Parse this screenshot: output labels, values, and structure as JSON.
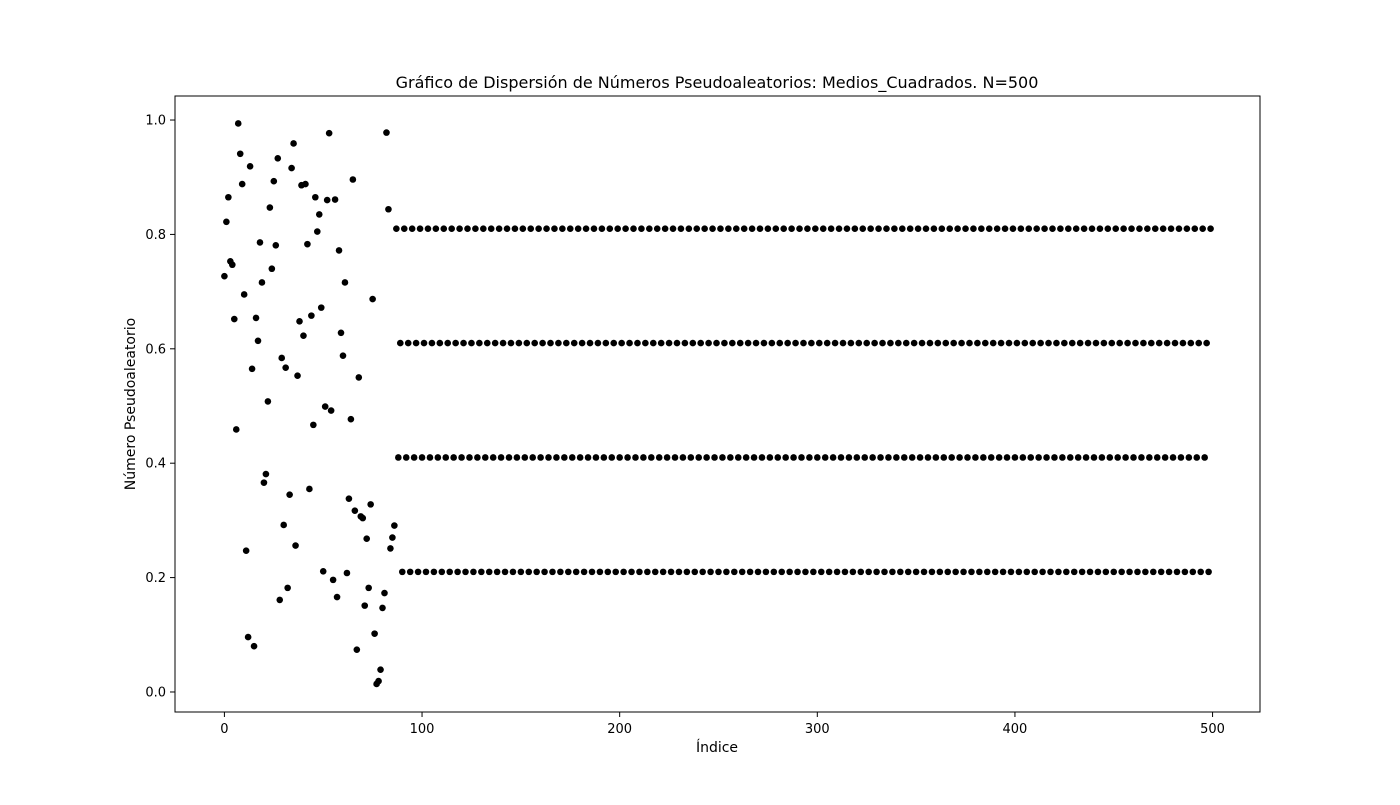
{
  "chart_data": {
    "type": "scatter",
    "title": "Gráfico de Dispersión de Números Pseudoaleatorios: Medios_Cuadrados. N=500",
    "xlabel": "Índice",
    "ylabel": "Número Pseudoaleatorio",
    "xlim": [
      -25,
      524
    ],
    "ylim": [
      -0.035,
      1.042
    ],
    "xticks": [
      0,
      100,
      200,
      300,
      400,
      500
    ],
    "yticks": [
      0.0,
      0.2,
      0.4,
      0.6,
      0.8,
      1.0
    ],
    "xtick_labels": [
      "0",
      "100",
      "200",
      "300",
      "400",
      "500"
    ],
    "ytick_labels": [
      "0.0",
      "0.2",
      "0.4",
      "0.6",
      "0.8",
      "1.0"
    ],
    "grid": false,
    "legend": "none",
    "marker_color": "#000000",
    "irregular_points": [
      [
        0,
        0.727
      ],
      [
        1,
        0.822
      ],
      [
        2,
        0.865
      ],
      [
        3,
        0.753
      ],
      [
        4,
        0.747
      ],
      [
        5,
        0.652
      ],
      [
        6,
        0.459
      ],
      [
        7,
        0.994
      ],
      [
        8,
        0.941
      ],
      [
        9,
        0.888
      ],
      [
        10,
        0.695
      ],
      [
        11,
        0.247
      ],
      [
        12,
        0.096
      ],
      [
        13,
        0.919
      ],
      [
        14,
        0.565
      ],
      [
        15,
        0.08
      ],
      [
        16,
        0.654
      ],
      [
        17,
        0.614
      ],
      [
        18,
        0.786
      ],
      [
        19,
        0.716
      ],
      [
        20,
        0.366
      ],
      [
        21,
        0.381
      ],
      [
        22,
        0.508
      ],
      [
        23,
        0.847
      ],
      [
        24,
        0.74
      ],
      [
        25,
        0.893
      ],
      [
        26,
        0.781
      ],
      [
        27,
        0.933
      ],
      [
        28,
        0.161
      ],
      [
        29,
        0.584
      ],
      [
        30,
        0.292
      ],
      [
        31,
        0.567
      ],
      [
        32,
        0.182
      ],
      [
        33,
        0.345
      ],
      [
        34,
        0.916
      ],
      [
        35,
        0.959
      ],
      [
        36,
        0.256
      ],
      [
        37,
        0.553
      ],
      [
        38,
        0.648
      ],
      [
        39,
        0.886
      ],
      [
        40,
        0.623
      ],
      [
        41,
        0.888
      ],
      [
        42,
        0.783
      ],
      [
        43,
        0.355
      ],
      [
        44,
        0.658
      ],
      [
        45,
        0.467
      ],
      [
        46,
        0.865
      ],
      [
        47,
        0.805
      ],
      [
        48,
        0.835
      ],
      [
        49,
        0.672
      ],
      [
        50,
        0.211
      ],
      [
        51,
        0.499
      ],
      [
        52,
        0.86
      ],
      [
        53,
        0.977
      ],
      [
        54,
        0.492
      ],
      [
        55,
        0.196
      ],
      [
        56,
        0.861
      ],
      [
        57,
        0.166
      ],
      [
        58,
        0.772
      ],
      [
        59,
        0.628
      ],
      [
        60,
        0.588
      ],
      [
        61,
        0.716
      ],
      [
        62,
        0.208
      ],
      [
        63,
        0.338
      ],
      [
        64,
        0.477
      ],
      [
        65,
        0.896
      ],
      [
        66,
        0.317
      ],
      [
        67,
        0.074
      ],
      [
        68,
        0.55
      ],
      [
        69,
        0.307
      ],
      [
        70,
        0.304
      ],
      [
        71,
        0.151
      ],
      [
        72,
        0.268
      ],
      [
        73,
        0.182
      ],
      [
        74,
        0.328
      ],
      [
        75,
        0.687
      ],
      [
        76,
        0.102
      ],
      [
        77,
        0.014
      ],
      [
        78,
        0.019
      ],
      [
        79,
        0.039
      ],
      [
        80,
        0.147
      ],
      [
        81,
        0.173
      ],
      [
        82,
        0.978
      ],
      [
        83,
        0.844
      ],
      [
        84,
        0.251
      ],
      [
        85,
        0.27
      ],
      [
        86,
        0.291
      ]
    ],
    "cycle": {
      "start_index": 87,
      "end_index": 499,
      "values": [
        0.81,
        0.41,
        0.61,
        0.21
      ]
    }
  }
}
